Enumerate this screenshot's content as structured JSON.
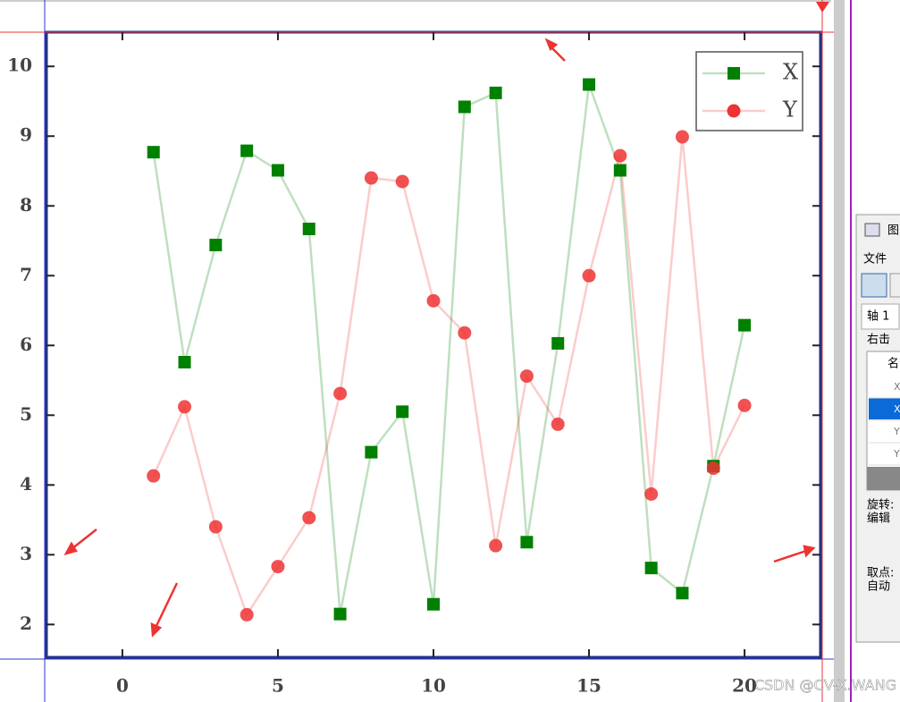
{
  "chart_data": {
    "type": "line",
    "x": [
      1,
      2,
      3,
      4,
      5,
      6,
      7,
      8,
      9,
      10,
      11,
      12,
      13,
      14,
      15,
      16,
      17,
      18,
      19,
      20
    ],
    "series": [
      {
        "name": "X",
        "color": "#008000",
        "marker": "square",
        "values": [
          8.77,
          5.76,
          7.44,
          8.79,
          8.51,
          7.67,
          2.15,
          4.47,
          5.05,
          2.29,
          9.42,
          9.62,
          3.18,
          6.03,
          9.74,
          8.51,
          2.81,
          2.45,
          4.27,
          6.29
        ]
      },
      {
        "name": "Y",
        "color": "#ee3333",
        "marker": "circle",
        "values": [
          4.13,
          5.12,
          3.4,
          2.14,
          2.83,
          3.53,
          5.31,
          8.4,
          8.35,
          6.64,
          6.18,
          3.13,
          5.56,
          4.87,
          7.0,
          8.72,
          3.87,
          8.99,
          4.24,
          5.14
        ]
      }
    ],
    "xlim": [
      -2.44,
      22.44
    ],
    "ylim": [
      1.53,
      10.49
    ],
    "xticks": [
      0,
      5,
      10,
      15,
      20
    ],
    "yticks": [
      2,
      3,
      4,
      5,
      6,
      7,
      8,
      9,
      10
    ],
    "legend": "upper right"
  },
  "ui": {
    "window_title": "图",
    "menu": "文件",
    "tab": "轴 1",
    "hint": "右击",
    "table_header": "名",
    "table_rows": [
      "X",
      "X",
      "Y",
      "Y"
    ],
    "label_rotate": "旋转:",
    "label_edit": "编辑",
    "label_pick": "取点:",
    "label_auto": "自动",
    "watermark": "CSDN @CV-X.WANG"
  }
}
